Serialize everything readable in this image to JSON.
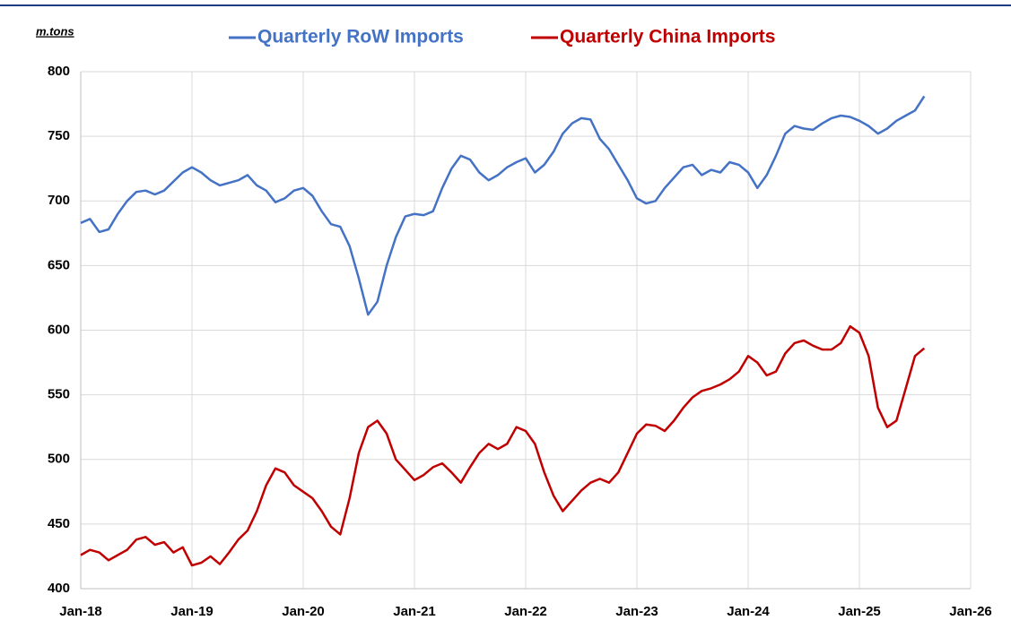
{
  "chart_data": {
    "type": "line",
    "unit_label": "m.tons",
    "x": [
      "2018-01",
      "2018-02",
      "2018-03",
      "2018-04",
      "2018-05",
      "2018-06",
      "2018-07",
      "2018-08",
      "2018-09",
      "2018-10",
      "2018-11",
      "2018-12",
      "2019-01",
      "2019-02",
      "2019-03",
      "2019-04",
      "2019-05",
      "2019-06",
      "2019-07",
      "2019-08",
      "2019-09",
      "2019-10",
      "2019-11",
      "2019-12",
      "2020-01",
      "2020-02",
      "2020-03",
      "2020-04",
      "2020-05",
      "2020-06",
      "2020-07",
      "2020-08",
      "2020-09",
      "2020-10",
      "2020-11",
      "2020-12",
      "2021-01",
      "2021-02",
      "2021-03",
      "2021-04",
      "2021-05",
      "2021-06",
      "2021-07",
      "2021-08",
      "2021-09",
      "2021-10",
      "2021-11",
      "2021-12",
      "2022-01",
      "2022-02",
      "2022-03",
      "2022-04",
      "2022-05",
      "2022-06",
      "2022-07",
      "2022-08",
      "2022-09",
      "2022-10",
      "2022-11",
      "2022-12",
      "2023-01",
      "2023-02",
      "2023-03",
      "2023-04",
      "2023-05",
      "2023-06",
      "2023-07",
      "2023-08",
      "2023-09",
      "2023-10",
      "2023-11",
      "2023-12",
      "2024-01",
      "2024-02",
      "2024-03",
      "2024-04",
      "2024-05",
      "2024-06",
      "2024-07",
      "2024-08",
      "2024-09",
      "2024-10",
      "2024-11",
      "2024-12",
      "2025-01",
      "2025-02",
      "2025-03",
      "2025-04",
      "2025-05",
      "2025-06",
      "2025-07",
      "2025-08"
    ],
    "series": [
      {
        "name": "Quarterly RoW Imports",
        "color": "#4472c4",
        "values": [
          683,
          686,
          676,
          678,
          690,
          700,
          707,
          708,
          705,
          708,
          715,
          722,
          726,
          722,
          716,
          712,
          714,
          716,
          720,
          712,
          708,
          699,
          702,
          708,
          710,
          704,
          692,
          682,
          680,
          665,
          640,
          612,
          622,
          650,
          672,
          688,
          690,
          689,
          692,
          710,
          725,
          735,
          732,
          722,
          716,
          720,
          726,
          730,
          733,
          722,
          728,
          738,
          752,
          760,
          764,
          763,
          748,
          740,
          728,
          716,
          702,
          698,
          700,
          710,
          718,
          726,
          728,
          720,
          724,
          722,
          730,
          728,
          722,
          710,
          720,
          735,
          752,
          758,
          756,
          755,
          760,
          764,
          766,
          765,
          762,
          758,
          752,
          756,
          762,
          766,
          770,
          781
        ]
      },
      {
        "name": "Quarterly China Imports",
        "color": "#c00000",
        "values": [
          426,
          430,
          428,
          422,
          426,
          430,
          438,
          440,
          434,
          436,
          428,
          432,
          418,
          420,
          425,
          419,
          428,
          438,
          445,
          460,
          480,
          493,
          490,
          480,
          475,
          470,
          460,
          448,
          442,
          470,
          505,
          525,
          530,
          520,
          500,
          492,
          484,
          488,
          494,
          497,
          490,
          482,
          494,
          505,
          512,
          508,
          512,
          525,
          522,
          512,
          490,
          472,
          460,
          468,
          476,
          482,
          485,
          482,
          490,
          505,
          520,
          527,
          526,
          522,
          530,
          540,
          548,
          553,
          555,
          558,
          562,
          568,
          580,
          575,
          565,
          568,
          582,
          590,
          592,
          588,
          585,
          585,
          590,
          603,
          598,
          580,
          540,
          525,
          530,
          555,
          580,
          586
        ]
      }
    ],
    "xlim": [
      "2018-01",
      "2026-01"
    ],
    "xticks": [
      {
        "value": "2018-01",
        "label": "Jan-18"
      },
      {
        "value": "2019-01",
        "label": "Jan-19"
      },
      {
        "value": "2020-01",
        "label": "Jan-20"
      },
      {
        "value": "2021-01",
        "label": "Jan-21"
      },
      {
        "value": "2022-01",
        "label": "Jan-22"
      },
      {
        "value": "2023-01",
        "label": "Jan-23"
      },
      {
        "value": "2024-01",
        "label": "Jan-24"
      },
      {
        "value": "2025-01",
        "label": "Jan-25"
      },
      {
        "value": "2026-01",
        "label": "Jan-26"
      }
    ],
    "ylim": [
      400,
      800
    ],
    "yticks": [
      400,
      450,
      500,
      550,
      600,
      650,
      700,
      750,
      800
    ],
    "grid": true
  }
}
